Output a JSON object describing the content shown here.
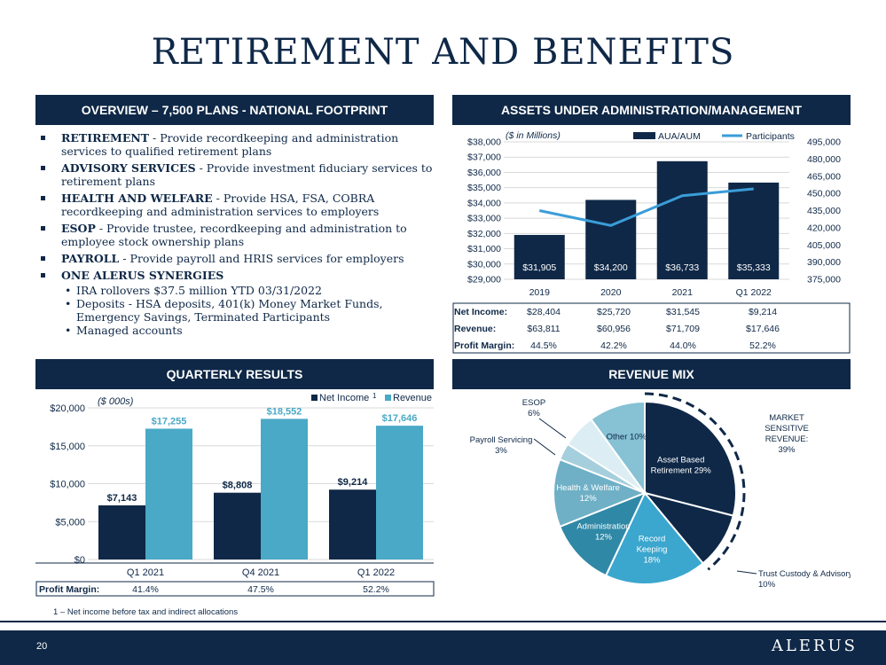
{
  "page": {
    "title": "RETIREMENT AND BENEFITS",
    "page_number": "20",
    "logo": "ALERUS"
  },
  "overview": {
    "header": "OVERVIEW – 7,500 PLANS - NATIONAL FOOTPRINT",
    "items": [
      {
        "term": "RETIREMENT",
        "text": " - Provide recordkeeping and administration services to qualified retirement plans"
      },
      {
        "term": "ADVISORY SERVICES",
        "text": " - Provide investment fiduciary services to retirement plans"
      },
      {
        "term": "HEALTH AND WELFARE",
        "text": " - Provide HSA, FSA, COBRA recordkeeping and administration services to employers"
      },
      {
        "term": "ESOP",
        "text": " - Provide trustee, recordkeeping and administration to employee stock ownership plans"
      },
      {
        "term": "PAYROLL",
        "text": " - Provide payroll and HRIS services for employers"
      },
      {
        "term": "ONE ALERUS SYNERGIES",
        "text": ""
      }
    ],
    "synergies": [
      "IRA rollovers $37.5 million YTD 03/31/2022",
      "Deposits - HSA deposits, 401(k) Money Market Funds, Emergency Savings, Terminated Participants",
      "Managed accounts"
    ]
  },
  "aua": {
    "header": "ASSETS UNDER ADMINISTRATION/MANAGEMENT",
    "table": {
      "rows": [
        {
          "label": "Net Income:",
          "values": [
            "$28,404",
            "$25,720",
            "$31,545",
            "$9,214"
          ]
        },
        {
          "label": "Revenue:",
          "values": [
            "$63,811",
            "$60,956",
            "$71,709",
            "$17,646"
          ]
        },
        {
          "label": "Profit Margin:",
          "values": [
            "44.5%",
            "42.2%",
            "44.0%",
            "52.2%"
          ]
        }
      ]
    }
  },
  "quarterly": {
    "header": "QUARTERLY RESULTS",
    "footnote_marker": "1",
    "profit_margin_label": "Profit Margin:",
    "profit_margins": [
      "41.4%",
      "47.5%",
      "52.2%"
    ]
  },
  "revmix": {
    "header": "REVENUE MIX",
    "market_note": "MARKET SENSITIVE REVENUE: 39%"
  },
  "footnote": "1 – Net income before tax and indirect allocations",
  "colors": {
    "navy": "#0f2847",
    "blue": "#3a9dd8",
    "teal": "#4aa9c6"
  },
  "chart_data": [
    {
      "type": "bar",
      "title": "",
      "unit_note": "($ in Millions)",
      "categories": [
        "2019",
        "2020",
        "2021",
        "Q1 2022"
      ],
      "series": [
        {
          "name": "AUA/AUM",
          "type": "bar",
          "axis": "left",
          "values": [
            31905,
            34200,
            36733,
            35333
          ],
          "labels": [
            "$31,905",
            "$34,200",
            "$36,733",
            "$35,333"
          ]
        },
        {
          "name": "Participants",
          "type": "line",
          "axis": "right",
          "values": [
            435000,
            422000,
            448000,
            454000
          ]
        }
      ],
      "ylim": [
        29000,
        38000
      ],
      "y_ticks": [
        "$29,000",
        "$30,000",
        "$31,000",
        "$32,000",
        "$33,000",
        "$34,000",
        "$35,000",
        "$36,000",
        "$37,000",
        "$38,000"
      ],
      "y2lim": [
        375000,
        495000
      ],
      "y2_ticks": [
        "375,000",
        "390,000",
        "405,000",
        "420,000",
        "435,000",
        "450,000",
        "465,000",
        "480,000",
        "495,000"
      ],
      "legend": "top-right",
      "grid": true
    },
    {
      "type": "bar",
      "title": "",
      "unit_note": "($ 000s)",
      "categories": [
        "Q1 2021",
        "Q4 2021",
        "Q1 2022"
      ],
      "series": [
        {
          "name": "Net Income",
          "values": [
            7143,
            8808,
            9214
          ],
          "labels": [
            "$7,143",
            "$8,808",
            "$9,214"
          ]
        },
        {
          "name": "Revenue",
          "values": [
            17255,
            18552,
            17646
          ],
          "labels": [
            "$17,255",
            "$18,552",
            "$17,646"
          ]
        }
      ],
      "ylim": [
        0,
        20000
      ],
      "y_ticks": [
        "$0",
        "$5,000",
        "$10,000",
        "$15,000",
        "$20,000"
      ],
      "legend": "top-right",
      "grid": true
    },
    {
      "type": "pie",
      "title": "",
      "slices": [
        {
          "label": "Asset Based Retirement",
          "pct_label": "29%",
          "value": 29,
          "color": "#0f2847"
        },
        {
          "label": "Trust Custody & Advisory",
          "pct_label": "10%",
          "value": 10,
          "color": "#0f2847"
        },
        {
          "label": "Record Keeping",
          "pct_label": "18%",
          "value": 18,
          "color": "#3ba6ce"
        },
        {
          "label": "Administration",
          "pct_label": "12%",
          "value": 12,
          "color": "#2f88a6"
        },
        {
          "label": "Health & Welfare",
          "pct_label": "12%",
          "value": 12,
          "color": "#6fb0c6"
        },
        {
          "label": "Payroll Servicing",
          "pct_label": "3%",
          "value": 3,
          "color": "#a5cfdc"
        },
        {
          "label": "ESOP",
          "pct_label": "6%",
          "value": 6,
          "color": "#dceef3"
        },
        {
          "label": "Other",
          "pct_label": "10%",
          "value": 10,
          "color": "#86c1d4"
        }
      ]
    }
  ]
}
